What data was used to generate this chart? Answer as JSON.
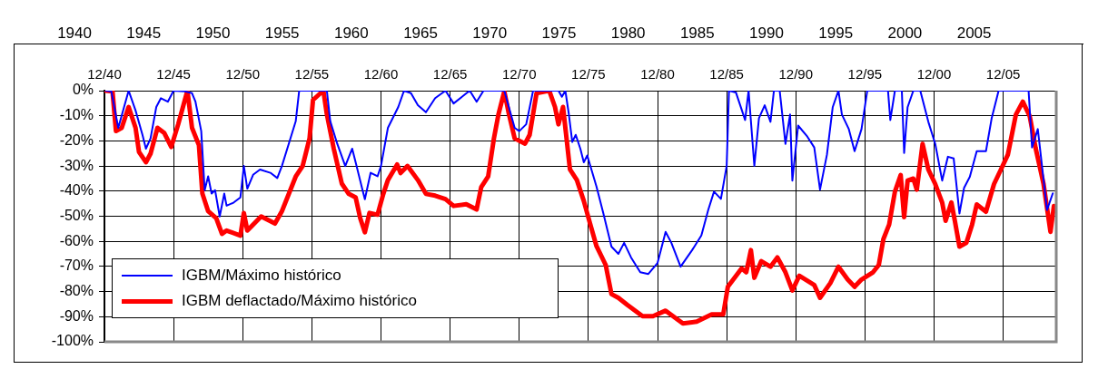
{
  "chart_data": {
    "type": "line",
    "xlim": [
      "1940-12",
      "2009-10"
    ],
    "xticks": [
      {
        "value": "1940-12",
        "label": "12/40"
      },
      {
        "value": "1945-12",
        "label": "12/45"
      },
      {
        "value": "1950-12",
        "label": "12/50"
      },
      {
        "value": "1955-12",
        "label": "12/55"
      },
      {
        "value": "1960-12",
        "label": "12/60"
      },
      {
        "value": "1965-12",
        "label": "12/65"
      },
      {
        "value": "1970-12",
        "label": "12/70"
      },
      {
        "value": "1975-12",
        "label": "12/75"
      },
      {
        "value": "1980-12",
        "label": "12/80"
      },
      {
        "value": "1985-12",
        "label": "12/85"
      },
      {
        "value": "1990-12",
        "label": "12/90"
      },
      {
        "value": "1995-12",
        "label": "12/95"
      },
      {
        "value": "2000-12",
        "label": "12/00"
      },
      {
        "value": "2005-12",
        "label": "12/05"
      }
    ],
    "x2lim": [
      1935.6,
      2012.9
    ],
    "x2ticks": [
      1940,
      1945,
      1950,
      1955,
      1960,
      1965,
      1970,
      1975,
      1980,
      1985,
      1990,
      1995,
      2000,
      2005
    ],
    "ylim": [
      -100,
      0
    ],
    "yticks": [
      {
        "value": -100,
        "label": "-100%"
      },
      {
        "value": -90,
        "label": "-90%"
      },
      {
        "value": -80,
        "label": "-80%"
      },
      {
        "value": -70,
        "label": "-70%"
      },
      {
        "value": -60,
        "label": "-60%"
      },
      {
        "value": -50,
        "label": "-50%"
      },
      {
        "value": -40,
        "label": "-40%"
      },
      {
        "value": -30,
        "label": "-30%"
      },
      {
        "value": -20,
        "label": "-20%"
      },
      {
        "value": -10,
        "label": "-10%"
      },
      {
        "value": 0,
        "label": "0%"
      }
    ],
    "grid": true,
    "legend": "bottom left",
    "marker": "none",
    "line_style": "solid",
    "series": [
      {
        "name": "IGBM/Máximo histórico",
        "color": "#0000ff",
        "x": [
          "1941-01",
          "1941-06",
          "1941-12",
          "1942-09",
          "1943-03",
          "1943-09",
          "1943-12",
          "1944-04",
          "1944-09",
          "1945-01",
          "1945-07",
          "1945-12",
          "1946-10",
          "1947-04",
          "1947-07",
          "1947-12",
          "1948-03",
          "1948-06",
          "1948-09",
          "1948-12",
          "1949-04",
          "1949-08",
          "1949-10",
          "1950-04",
          "1950-10",
          "1951-01",
          "1951-04",
          "1951-09",
          "1952-03",
          "1952-12",
          "1953-06",
          "1953-10",
          "1954-04",
          "1954-10",
          "1955-01",
          "1956-01",
          "1957-01",
          "1957-04",
          "1957-10",
          "1958-05",
          "1958-11",
          "1959-02",
          "1959-08",
          "1959-10",
          "1960-03",
          "1960-09",
          "1960-12",
          "1961-06",
          "1962-03",
          "1962-08",
          "1963-02",
          "1963-08",
          "1964-03",
          "1964-11",
          "1965-08",
          "1966-03",
          "1967-05",
          "1967-11",
          "1968-05",
          "1969-11",
          "1970-08",
          "1970-12",
          "1971-06",
          "1971-12",
          "1973-10",
          "1974-01",
          "1974-04",
          "1974-07",
          "1974-10",
          "1975-01",
          "1975-05",
          "1975-08",
          "1975-11",
          "1976-07",
          "1977-01",
          "1977-08",
          "1978-02",
          "1978-07",
          "1979-01",
          "1979-09",
          "1980-04",
          "1980-12",
          "1981-07",
          "1981-12",
          "1982-08",
          "1983-06",
          "1984-02",
          "1984-08",
          "1985-01",
          "1985-07",
          "1985-12",
          "1986-02",
          "1986-08",
          "1987-04",
          "1987-07",
          "1987-12",
          "1988-04",
          "1988-09",
          "1989-02",
          "1989-05",
          "1989-10",
          "1990-03",
          "1990-07",
          "1990-09",
          "1991-02",
          "1991-10",
          "1992-04",
          "1992-09",
          "1993-03",
          "1993-08",
          "1994-01",
          "1994-04",
          "1994-10",
          "1995-03",
          "1995-09",
          "1996-02",
          "1997-08",
          "1997-10",
          "1998-02",
          "1998-08",
          "1998-10",
          "1999-01",
          "1999-06",
          "1999-12",
          "2000-07",
          "2001-01",
          "2001-07",
          "2001-12",
          "2002-05",
          "2002-10",
          "2003-02",
          "2003-07",
          "2004-01",
          "2004-09",
          "2005-02",
          "2005-08",
          "2007-10",
          "2008-01",
          "2008-06",
          "2009-02",
          "2009-07"
        ],
        "values": [
          0,
          -0.3,
          -14.8,
          0,
          -7.9,
          -17.6,
          -23.1,
          -19,
          -6.5,
          -3,
          -4.4,
          0,
          -0.3,
          -1,
          -4.4,
          -16.1,
          -39.6,
          -34.1,
          -41,
          -39.6,
          -50.1,
          -41,
          -45.8,
          -44.6,
          -42.5,
          -30,
          -39,
          -33.5,
          -31.4,
          -32.7,
          -34.8,
          -30,
          -21.1,
          -12.2,
          0,
          0,
          0,
          -12.2,
          -21.1,
          -30,
          -23.1,
          -28.5,
          -39.6,
          -43.2,
          -32.7,
          -34.1,
          -30,
          -14.8,
          -6.5,
          0,
          -1,
          -5.8,
          -8.6,
          -3,
          0,
          -5.1,
          0,
          -4.4,
          0,
          0,
          -14.8,
          -16.1,
          -13.4,
          0,
          0,
          -2.4,
          0,
          -9.3,
          -20.4,
          -17.6,
          -23.1,
          -28.5,
          -25.8,
          -38.2,
          -48.9,
          -62.1,
          -65,
          -60.6,
          -66.4,
          -72.3,
          -73,
          -68.6,
          -56.2,
          -60.6,
          -70.1,
          -63.5,
          -57.7,
          -47.5,
          -40.2,
          -43.1,
          -29.9,
          0,
          -0.7,
          -11.7,
          0,
          -29.9,
          -11,
          -5.8,
          -12.4,
          0,
          0,
          -21.2,
          -9.5,
          -35.8,
          -13.9,
          -18.3,
          -22.6,
          -39.4,
          -25.5,
          -6.6,
          0,
          -9.5,
          -15.3,
          -24.1,
          -15.3,
          0,
          0,
          -11.7,
          0,
          0,
          -24.8,
          -6.6,
          0,
          0,
          -12.4,
          -21.2,
          -35.8,
          -26.3,
          -27,
          -48.9,
          -38.7,
          -34.3,
          -24.1,
          -24.1,
          -10.9,
          0,
          0,
          -22.6,
          -15.3,
          -47.5,
          -40.9
        ]
      },
      {
        "name": "IGBM deflactado/Máximo histórico",
        "color": "#ff0000",
        "x": [
          "1941-01",
          "1941-07",
          "1941-10",
          "1942-03",
          "1942-09",
          "1943-03",
          "1943-06",
          "1943-12",
          "1944-04",
          "1944-10",
          "1945-04",
          "1945-10",
          "1946-04",
          "1946-12",
          "1947-04",
          "1947-10",
          "1948-01",
          "1948-06",
          "1949-01",
          "1949-06",
          "1949-10",
          "1950-10",
          "1951-01",
          "1951-04",
          "1952-04",
          "1953-04",
          "1953-10",
          "1954-10",
          "1955-04",
          "1955-10",
          "1956-01",
          "1956-10",
          "1957-01",
          "1957-07",
          "1958-02",
          "1958-08",
          "1959-02",
          "1959-06",
          "1959-10",
          "1960-02",
          "1960-09",
          "1961-02",
          "1961-06",
          "1962-02",
          "1962-05",
          "1962-11",
          "1963-08",
          "1964-03",
          "1964-11",
          "1965-08",
          "1966-03",
          "1967-02",
          "1967-11",
          "1968-03",
          "1968-09",
          "1969-02",
          "1969-06",
          "1969-11",
          "1970-03",
          "1970-08",
          "1971-05",
          "1971-09",
          "1972-03",
          "1973-02",
          "1973-07",
          "1973-10",
          "1974-02",
          "1974-08",
          "1975-02",
          "1975-08",
          "1976-01",
          "1976-07",
          "1977-03",
          "1977-08",
          "1978-02",
          "1978-10",
          "1979-11",
          "1980-08",
          "1981-07",
          "1982-10",
          "1983-10",
          "1984-11",
          "1985-09",
          "1986-01",
          "1987-01",
          "1987-05",
          "1987-09",
          "1987-12",
          "1988-06",
          "1989-02",
          "1989-08",
          "1990-03",
          "1990-09",
          "1991-03",
          "1992-04",
          "1992-09",
          "1993-06",
          "1994-01",
          "1994-09",
          "1995-03",
          "1995-09",
          "1996-07",
          "1996-12",
          "1997-04",
          "1997-09",
          "1998-02",
          "1998-07",
          "1998-10",
          "1999-01",
          "1999-06",
          "1999-09",
          "2000-02",
          "2000-07",
          "2001-01",
          "2001-07",
          "2001-10",
          "2002-03",
          "2002-06",
          "2002-10",
          "2003-04",
          "2003-09",
          "2004-01",
          "2004-09",
          "2005-04",
          "2005-10",
          "2006-04",
          "2006-11",
          "2007-05",
          "2007-11",
          "2008-04",
          "2008-11",
          "2009-05",
          "2009-08"
        ],
        "values": [
          0,
          -0.3,
          -16.1,
          -14.8,
          -6.5,
          -14.8,
          -24.4,
          -28.5,
          -25.1,
          -14.8,
          -16.9,
          -22.4,
          -13.4,
          0,
          -14.8,
          -21.7,
          -41,
          -48,
          -50.8,
          -57,
          -55.7,
          -57.7,
          -48.7,
          -55.7,
          -50.1,
          -52.9,
          -48,
          -34.2,
          -30,
          -19,
          -3.7,
          0,
          -9.3,
          -23.1,
          -37,
          -41.1,
          -42.5,
          -50.8,
          -56.4,
          -48.7,
          -49.4,
          -41.1,
          -35.6,
          -29.4,
          -32.8,
          -30,
          -35.6,
          -41.1,
          -41.8,
          -43.2,
          -45.9,
          -45.2,
          -47.3,
          -38.4,
          -34.2,
          -19,
          -9.3,
          -0.3,
          -9.3,
          -19,
          -21.1,
          -17.6,
          -1,
          0,
          -6.5,
          -13.4,
          -6.5,
          -31.4,
          -35.6,
          -43.9,
          -52.2,
          -61.9,
          -69.4,
          -81,
          -82.5,
          -85.4,
          -89.8,
          -89.8,
          -87.6,
          -92.7,
          -92,
          -89.1,
          -89.1,
          -78.1,
          -70.8,
          -72.3,
          -63.5,
          -74.5,
          -67.9,
          -70.1,
          -66.4,
          -72.3,
          -79.6,
          -73.7,
          -77.4,
          -82.5,
          -76.6,
          -70.1,
          -75.2,
          -78.1,
          -75.2,
          -72.3,
          -69.4,
          -59.1,
          -53.3,
          -40.2,
          -33.6,
          -50.4,
          -35.8,
          -35,
          -39.4,
          -21.2,
          -31.4,
          -37.2,
          -44.5,
          -51.8,
          -44.5,
          -51.8,
          -62.1,
          -60.6,
          -53.3,
          -45.3,
          -48.2,
          -37.2,
          -31.4,
          -25.5,
          -9.5,
          -4.4,
          -10.2,
          -22.6,
          -37.2,
          -56.2,
          -45.9
        ]
      }
    ]
  }
}
